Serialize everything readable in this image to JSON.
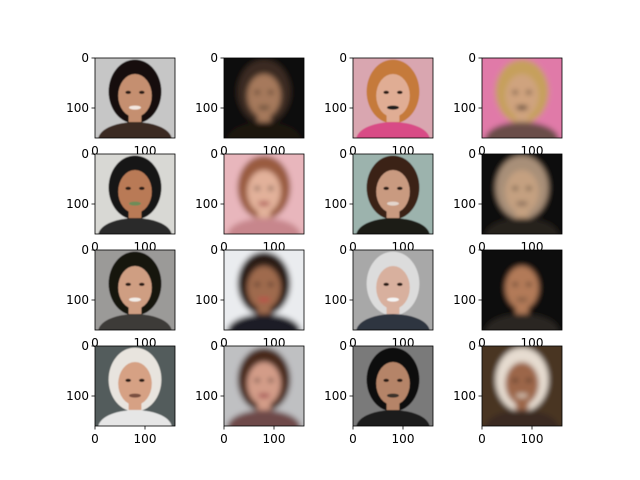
{
  "figure": {
    "rows": 4,
    "cols": 4,
    "background": "#ffffff",
    "axis_color": "#000000"
  },
  "chart_data": {
    "type": "image-grid",
    "title": "",
    "image_extent": [
      0,
      160
    ],
    "x_ticks": [
      0,
      100
    ],
    "y_ticks": [
      0,
      100
    ],
    "panels": [
      {
        "row": 0,
        "col": 0,
        "content": "sharp face photo",
        "palette": {
          "bg": "#c6c6c6",
          "hair": "#141010",
          "skin": "#c58f70",
          "clothing": "#3b2a24",
          "accent": "#f3e7e0"
        },
        "xticks_visible": false,
        "yticks_visible": true
      },
      {
        "row": 0,
        "col": 1,
        "content": "generated face",
        "palette": {
          "bg": "#0c0a08",
          "hair": "#3a2c20",
          "skin": "#a6795c",
          "clothing": "#1c1410",
          "accent": "#5e4634"
        },
        "xticks_visible": false,
        "yticks_visible": true
      },
      {
        "row": 0,
        "col": 2,
        "content": "sharp face photo",
        "palette": {
          "bg": "#d9a6b0",
          "hair": "#c57a3a",
          "skin": "#e0ad94",
          "clothing": "#d84b86",
          "accent": "#1e1a1a"
        },
        "xticks_visible": false,
        "yticks_visible": true
      },
      {
        "row": 0,
        "col": 3,
        "content": "generated face",
        "palette": {
          "bg": "#e07aa8",
          "hair": "#c6a05c",
          "skin": "#cfa37e",
          "clothing": "#6a4e48",
          "accent": "#2a1c1a"
        },
        "xticks_visible": false,
        "yticks_visible": true
      },
      {
        "row": 1,
        "col": 0,
        "content": "sharp face photo",
        "palette": {
          "bg": "#d8d8d4",
          "hair": "#151313",
          "skin": "#b97a57",
          "clothing": "#2a2a2a",
          "accent": "#6d8c58"
        },
        "xticks_visible": false,
        "yticks_visible": true
      },
      {
        "row": 1,
        "col": 1,
        "content": "generated face",
        "palette": {
          "bg": "#e8b6bc",
          "hair": "#9a5b3f",
          "skin": "#e2b19a",
          "clothing": "#c7868c",
          "accent": "#a33c44"
        },
        "xticks_visible": false,
        "yticks_visible": true
      },
      {
        "row": 1,
        "col": 2,
        "content": "sharp face photo",
        "palette": {
          "bg": "#9cb3ad",
          "hair": "#3a2418",
          "skin": "#c99a80",
          "clothing": "#1c1a18",
          "accent": "#e3d6cd"
        },
        "xticks_visible": false,
        "yticks_visible": true
      },
      {
        "row": 1,
        "col": 3,
        "content": "generated face",
        "palette": {
          "bg": "#0c0a09",
          "hair": "#a88f78",
          "skin": "#c4a080",
          "clothing": "#28201c",
          "accent": "#7a6050"
        },
        "xticks_visible": false,
        "yticks_visible": true
      },
      {
        "row": 2,
        "col": 0,
        "content": "sharp face photo",
        "palette": {
          "bg": "#9b9a98",
          "hair": "#141210",
          "skin": "#cf9e82",
          "clothing": "#3c3a38",
          "accent": "#f2ede8"
        },
        "xticks_visible": false,
        "yticks_visible": true
      },
      {
        "row": 2,
        "col": 1,
        "content": "generated face",
        "palette": {
          "bg": "#eaecef",
          "hair": "#2a1e18",
          "skin": "#9f6a4e",
          "clothing": "#1e1c28",
          "accent": "#c24848"
        },
        "xticks_visible": false,
        "yticks_visible": true
      },
      {
        "row": 2,
        "col": 2,
        "content": "sharp face photo",
        "palette": {
          "bg": "#a8a8a8",
          "hair": "#dcdcdc",
          "skin": "#d8b09e",
          "clothing": "#2e3440",
          "accent": "#f4f4f4"
        },
        "xticks_visible": false,
        "yticks_visible": true
      },
      {
        "row": 2,
        "col": 3,
        "content": "generated face",
        "palette": {
          "bg": "#0b0a0a",
          "hair": "#100c0a",
          "skin": "#b27a58",
          "clothing": "#2c2522",
          "accent": "#7c5640"
        },
        "xticks_visible": false,
        "yticks_visible": true
      },
      {
        "row": 3,
        "col": 0,
        "content": "sharp face photo",
        "palette": {
          "bg": "#525c5c",
          "hair": "#e8e4de",
          "skin": "#d6a184",
          "clothing": "#e6e6e6",
          "accent": "#7a5040"
        },
        "xticks_visible": true,
        "yticks_visible": true
      },
      {
        "row": 3,
        "col": 1,
        "content": "generated face",
        "palette": {
          "bg": "#bfc0c2",
          "hair": "#4a2a1e",
          "skin": "#d39c88",
          "clothing": "#6e4a48",
          "accent": "#9a3a46"
        },
        "xticks_visible": true,
        "yticks_visible": true
      },
      {
        "row": 3,
        "col": 2,
        "content": "sharp face photo",
        "palette": {
          "bg": "#7a7a7a",
          "hair": "#0e0c0c",
          "skin": "#b58468",
          "clothing": "#1a1a1a",
          "accent": "#3a302a"
        },
        "xticks_visible": true,
        "yticks_visible": true
      },
      {
        "row": 3,
        "col": 3,
        "content": "generated face",
        "palette": {
          "bg": "#4a3424",
          "hair": "#e6dcd0",
          "skin": "#9c6648",
          "clothing": "#3a2a22",
          "accent": "#d8c8b8"
        },
        "xticks_visible": true,
        "yticks_visible": true
      }
    ]
  }
}
